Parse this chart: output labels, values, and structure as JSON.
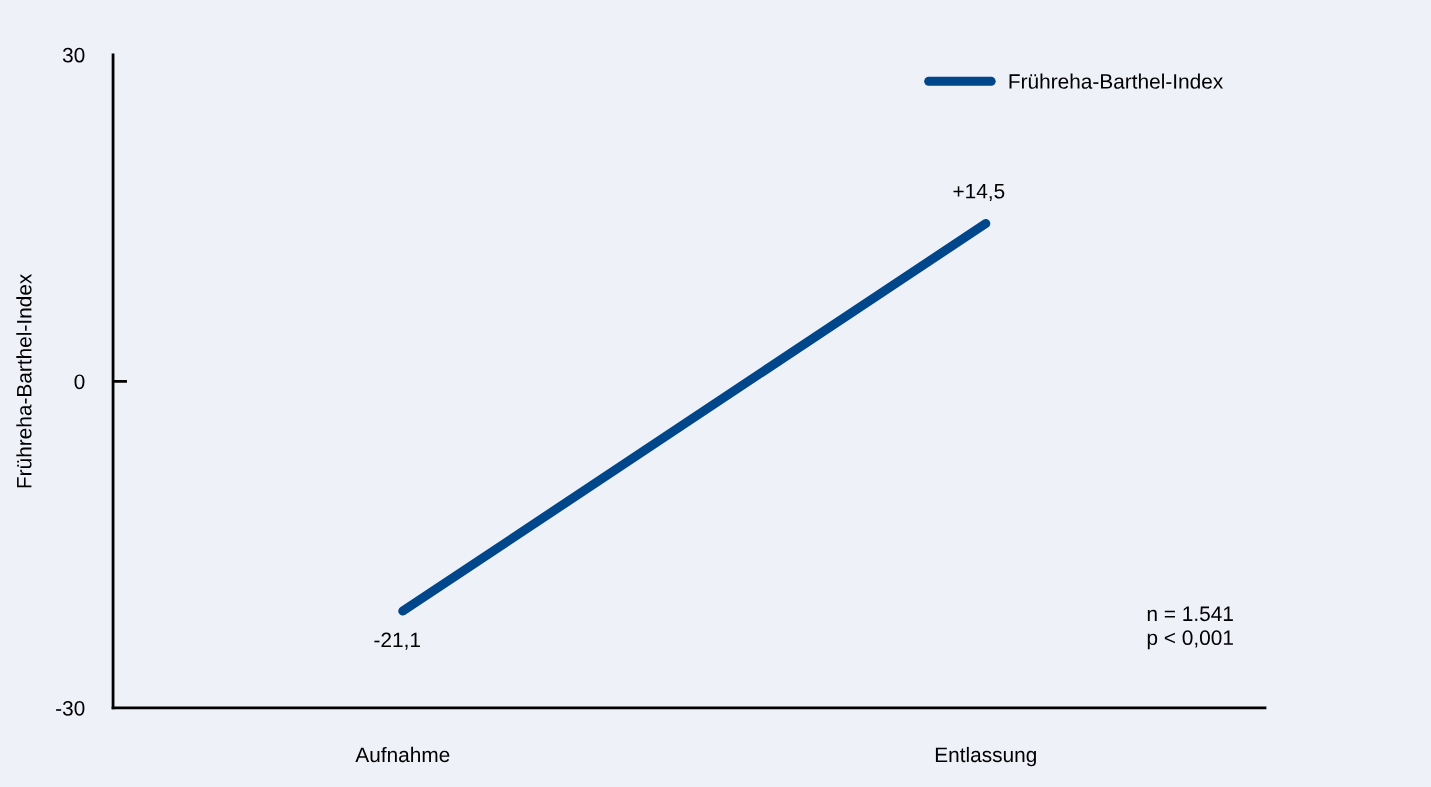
{
  "chart_data": {
    "type": "line",
    "ylabel": "Frühreha-Barthel-Index",
    "categories": [
      "Aufnahme",
      "Entlassung"
    ],
    "series": [
      {
        "name": "Frühreha-Barthel-Index",
        "color": "#00468b",
        "values": [
          -21.1,
          14.5
        ],
        "value_labels": [
          "-21,1",
          "+14,5"
        ]
      }
    ],
    "ylim": [
      -30,
      30
    ],
    "yticks": [
      -30,
      0,
      30
    ],
    "grid": false,
    "legend": "top right",
    "marker": "none",
    "line_style": "solid",
    "annotations": [
      "n = 1.541\np < 0,001"
    ]
  }
}
